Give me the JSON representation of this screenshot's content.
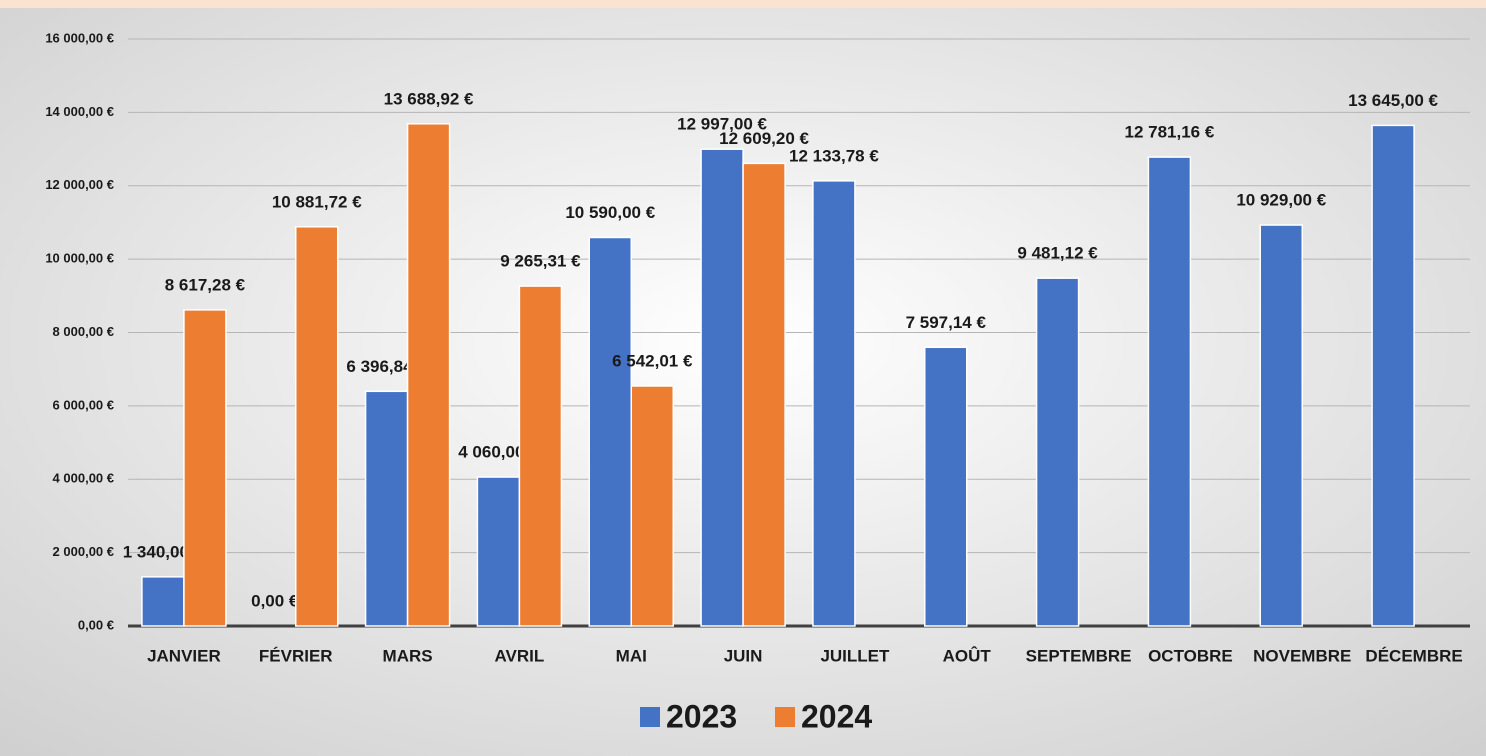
{
  "chart_data": {
    "type": "bar",
    "categories": [
      "JANVIER",
      "FÉVRIER",
      "MARS",
      "AVRIL",
      "MAI",
      "JUIN",
      "JUILLET",
      "AOÛT",
      "SEPTEMBRE",
      "OCTOBRE",
      "NOVEMBRE",
      "DÉCEMBRE"
    ],
    "series": [
      {
        "name": "2023",
        "color": "#4472c4",
        "values": [
          1340,
          0,
          6396.84,
          4060,
          10590,
          12997,
          12133.78,
          7597.14,
          9481.12,
          12781.16,
          10929,
          13645
        ],
        "value_labels": [
          "1 340,00 €",
          "0,00 €",
          "6 396,84 €",
          "4 060,00 €",
          "10 590,00 €",
          "12 997,00 €",
          "12 133,78 €",
          "7 597,14 €",
          "9 481,12 €",
          "12 781,16 €",
          "10 929,00 €",
          "13 645,00 €"
        ]
      },
      {
        "name": "2024",
        "color": "#ed7d31",
        "values": [
          8617.28,
          10881.72,
          13688.92,
          9265.31,
          6542.01,
          12609.2,
          null,
          null,
          null,
          null,
          null,
          null
        ],
        "value_labels": [
          "8 617,28 €",
          "10 881,72 €",
          "13 688,92 €",
          "9 265,31 €",
          "6 542,01 €",
          "12 609,20 €",
          null,
          null,
          null,
          null,
          null,
          null
        ]
      }
    ],
    "ylim": [
      0,
      16000
    ],
    "yticks": [
      {
        "value": 0,
        "label": "0,00 €"
      },
      {
        "value": 2000,
        "label": "2 000,00 €"
      },
      {
        "value": 4000,
        "label": "4 000,00 €"
      },
      {
        "value": 6000,
        "label": "6 000,00 €"
      },
      {
        "value": 8000,
        "label": "8 000,00 €"
      },
      {
        "value": 10000,
        "label": "10 000,00 €"
      },
      {
        "value": 12000,
        "label": "12 000,00 €"
      },
      {
        "value": 14000,
        "label": "14 000,00 €"
      },
      {
        "value": 16000,
        "label": "16 000,00 €"
      }
    ],
    "grid": true,
    "legend": "bottom"
  }
}
